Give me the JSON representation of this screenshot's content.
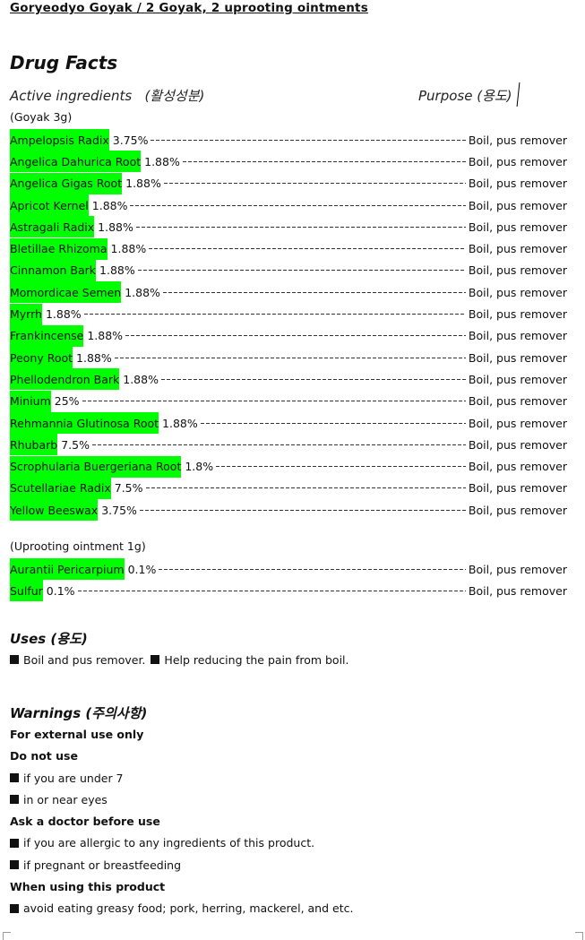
{
  "title": "Goryeodyo Goyak / 2 Goyak, 2 uprooting ointments",
  "heading": "Drug Facts",
  "active_label": "Active ingredients   (활성성분)",
  "purpose_label": "Purpose (용도)",
  "goyak_label": "(Goyak 3g)",
  "goyak": [
    {
      "name": "Ampelopsis Radix",
      "pct": "3.75%",
      "purpose": "Boil, pus remover"
    },
    {
      "name": "Angelica Dahurica Root",
      "pct": "1.88%",
      "purpose": "Boil, pus remover"
    },
    {
      "name": "Angelica Gigas Root",
      "pct": "1.88%",
      "purpose": "Boil, pus remover"
    },
    {
      "name": "Apricot Kernel",
      "pct": "1.88%",
      "purpose": "Boil, pus remover"
    },
    {
      "name": "Astragali Radix",
      "pct": "1.88%",
      "purpose": "Boil, pus remover"
    },
    {
      "name": "Bletillae Rhizoma",
      "pct": "1.88%",
      "purpose": "Boil, pus remover"
    },
    {
      "name": "Cinnamon Bark",
      "pct": "1.88%",
      "purpose": "Boil, pus remover"
    },
    {
      "name": "Momordicae Semen",
      "pct": "1.88%",
      "purpose": "Boil, pus remover"
    },
    {
      "name": "Myrrh",
      "pct": "1.88%",
      "purpose": "Boil, pus remover"
    },
    {
      "name": "Frankincense",
      "pct": "1.88%",
      "purpose": "Boil, pus remover"
    },
    {
      "name": "Peony Root",
      "pct": "1.88%",
      "purpose": "Boil, pus remover"
    },
    {
      "name": "Phellodendron Bark",
      "pct": "1.88%",
      "purpose": "Boil, pus remover"
    },
    {
      "name": "Minium",
      "pct": "25%",
      "purpose": "Boil, pus remover"
    },
    {
      "name": "Rehmannia Glutinosa Root",
      "pct": "1.88%",
      "purpose": "Boil, pus remover"
    },
    {
      "name": "Rhubarb",
      "pct": "7.5%",
      "purpose": "Boil, pus remover"
    },
    {
      "name": "Scrophularia Buergeriana Root",
      "pct": "1.8%",
      "purpose": "Boil, pus remover"
    },
    {
      "name": "Scutellariae Radix",
      "pct": "7.5%",
      "purpose": "Boil, pus remover"
    },
    {
      "name": "Yellow Beeswax",
      "pct": "3.75%",
      "purpose": "Boil, pus remover"
    }
  ],
  "uproot_label": "(Uprooting ointment 1g)",
  "uproot": [
    {
      "name": "Aurantii Pericarpium",
      "pct": "0.1%",
      "purpose": "Boil, pus remover"
    },
    {
      "name": "Sulfur",
      "pct": "0.1%",
      "purpose": "Boil, pus remover"
    }
  ],
  "uses": {
    "heading": "Uses (용도)",
    "items": [
      "Boil and pus remover.",
      "Help reducing the pain from boil."
    ]
  },
  "warnings": {
    "heading": "Warnings (주의사항)",
    "external": "For external use only",
    "do_not_use": "Do not use",
    "do_not_use_items": [
      "if you are under 7",
      "in or near eyes"
    ],
    "ask_doctor": "Ask a doctor before use",
    "ask_doctor_items": [
      "if you are allergic to any ingredients of this product.",
      "if pregnant or breastfeeding"
    ],
    "when_using": "When using this product",
    "when_using_items": [
      "avoid eating greasy food; pork, herring, mackerel, and etc."
    ]
  },
  "colors": {
    "highlight": "#00ff00"
  }
}
